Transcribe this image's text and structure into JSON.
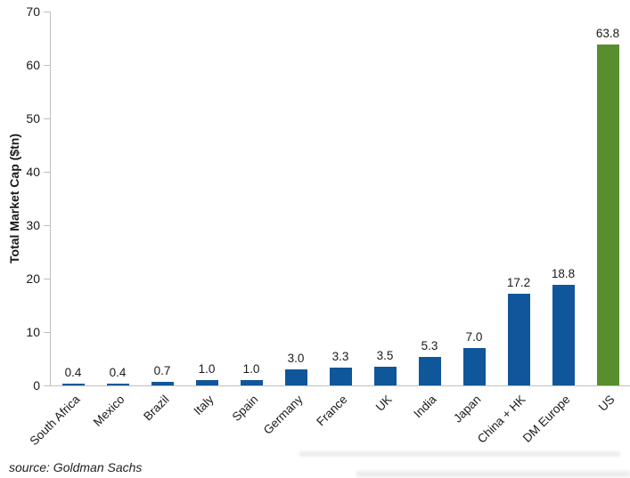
{
  "chart_data": {
    "type": "bar",
    "title": "",
    "xlabel": "",
    "ylabel": "Total Market Cap ($tn)",
    "categories": [
      "South Africa",
      "Mexico",
      "Brazil",
      "Italy",
      "Spain",
      "Germany",
      "France",
      "UK",
      "India",
      "Japan",
      "China + HK",
      "DM Europe",
      "US"
    ],
    "values": [
      0.4,
      0.4,
      0.7,
      1.0,
      1.0,
      3.0,
      3.3,
      3.5,
      5.3,
      7.0,
      17.2,
      18.8,
      63.8
    ],
    "value_labels": [
      "0.4",
      "0.4",
      "0.7",
      "1.0",
      "1.0",
      "3.0",
      "3.3",
      "3.5",
      "5.3",
      "7.0",
      "17.2",
      "18.8",
      "63.8"
    ],
    "bar_colors": [
      "#10569B",
      "#10569B",
      "#10569B",
      "#10569B",
      "#10569B",
      "#10569B",
      "#10569B",
      "#10569B",
      "#10569B",
      "#10569B",
      "#10569B",
      "#10569B",
      "#588E2E"
    ],
    "ylim": [
      0,
      70
    ],
    "yticks": [
      0,
      10,
      20,
      30,
      40,
      50,
      60,
      70
    ],
    "grid": false,
    "legend": "none",
    "x_label_rotation_deg": -45
  },
  "colors": {
    "bar_default": "#10569B",
    "bar_highlight": "#588E2E",
    "axis_line": "#bfbfbf",
    "text": "#1a1a1a",
    "background": "#ffffff"
  },
  "source_note": "source: Goldman Sachs"
}
